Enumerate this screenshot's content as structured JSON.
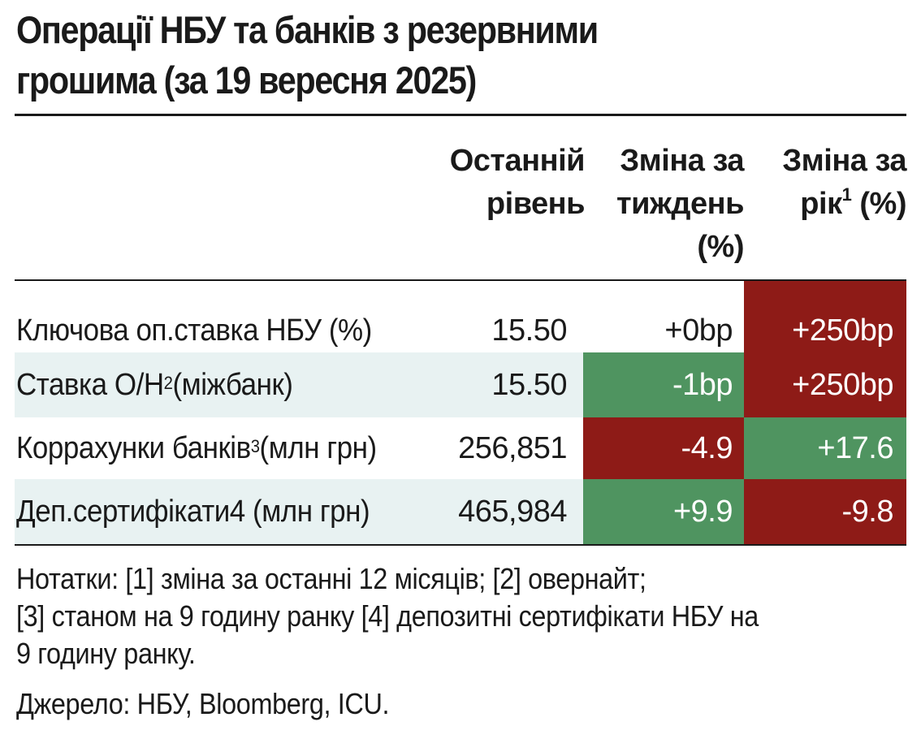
{
  "title": {
    "line1": "Операції НБУ та банків з резервними",
    "line2": "грошима (за 19 вересня 2025)"
  },
  "headers": {
    "level": [
      "Останній",
      "рівень"
    ],
    "week": [
      "Зміна за",
      "тиждень",
      "(%)"
    ],
    "year_a": "Зміна за",
    "year_b": "рік",
    "year_sup": "1",
    "year_c": " (%)"
  },
  "rows": [
    {
      "label": "Ключова оп.ставка НБУ (%)",
      "sup": "",
      "label_tail": "",
      "level": "15.50",
      "week": "+0bp",
      "year": "+250bp"
    },
    {
      "label": "Ставка О/Н",
      "sup": "2",
      "label_tail": " (міжбанк)",
      "level": "15.50",
      "week": "-1bp",
      "year": "+250bp"
    },
    {
      "label": "Коррахунки банків",
      "sup": "3",
      "label_tail": " (млн грн)",
      "level": "256,851",
      "week": "-4.9",
      "year": "+17.6"
    },
    {
      "label": "Деп.сертифікати4 (млн грн)",
      "sup": "",
      "label_tail": "",
      "level": "465,984",
      "week": "+9.9",
      "year": "-9.8"
    }
  ],
  "notes": {
    "line1": "Нотатки: [1] зміна за останні 12 місяців; [2] овернайт;",
    "line2": "[3] станом на 9 годину ранку [4] депозитні сертифікати НБУ на",
    "line3": "9 годину ранку.",
    "source": "Джерело: НБУ, Bloomberg, ICU."
  },
  "colors": {
    "red": "#8e1b17",
    "green": "#4f9460",
    "band": "#e8f2f2",
    "text_on_fill": "#ffffff"
  }
}
